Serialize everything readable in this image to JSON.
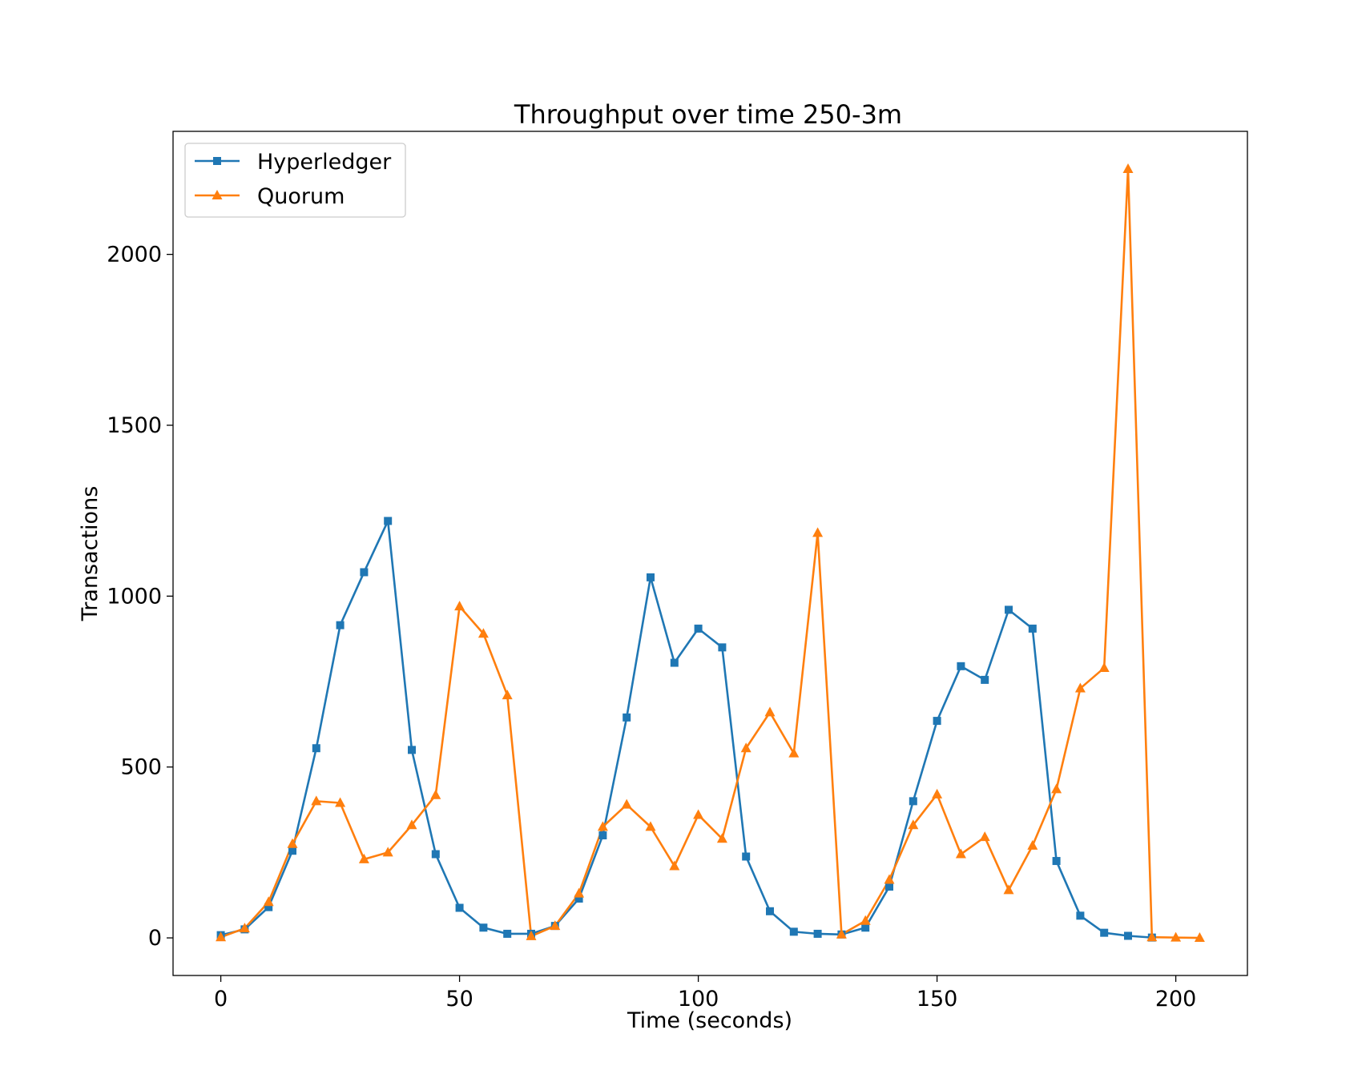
{
  "chart_data": {
    "type": "line",
    "title": "Throughput over time 250-3m",
    "xlabel": "Time (seconds)",
    "ylabel": "Transactions",
    "xlim": [
      -10,
      215
    ],
    "ylim": [
      -110,
      2360
    ],
    "xticks": [
      0,
      50,
      100,
      150,
      200
    ],
    "yticks": [
      0,
      500,
      1000,
      1500,
      2000
    ],
    "grid": false,
    "legend_position": "top-left",
    "x": [
      0,
      5,
      10,
      15,
      20,
      25,
      30,
      35,
      40,
      45,
      50,
      55,
      60,
      65,
      70,
      75,
      80,
      85,
      90,
      95,
      100,
      105,
      110,
      115,
      120,
      125,
      130,
      135,
      140,
      145,
      150,
      155,
      160,
      165,
      170,
      175,
      180,
      185,
      190,
      195,
      200,
      205
    ],
    "series": [
      {
        "name": "Hyperledger",
        "color": "#1f77b4",
        "marker": "square",
        "values": [
          8,
          25,
          90,
          255,
          555,
          915,
          1070,
          1220,
          550,
          245,
          88,
          30,
          12,
          12,
          35,
          115,
          300,
          645,
          1055,
          805,
          905,
          850,
          238,
          78,
          18,
          12,
          10,
          30,
          150,
          400,
          635,
          795,
          755,
          960,
          905,
          225,
          65,
          15,
          6,
          1,
          null,
          null
        ]
      },
      {
        "name": "Quorum",
        "color": "#ff7f0e",
        "marker": "triangle",
        "values": [
          2,
          28,
          105,
          275,
          400,
          395,
          230,
          250,
          330,
          418,
          970,
          890,
          710,
          5,
          35,
          130,
          325,
          390,
          325,
          210,
          360,
          290,
          555,
          660,
          540,
          1185,
          10,
          50,
          170,
          330,
          420,
          245,
          295,
          140,
          270,
          435,
          730,
          790,
          2250,
          2,
          1,
          0
        ]
      }
    ]
  }
}
